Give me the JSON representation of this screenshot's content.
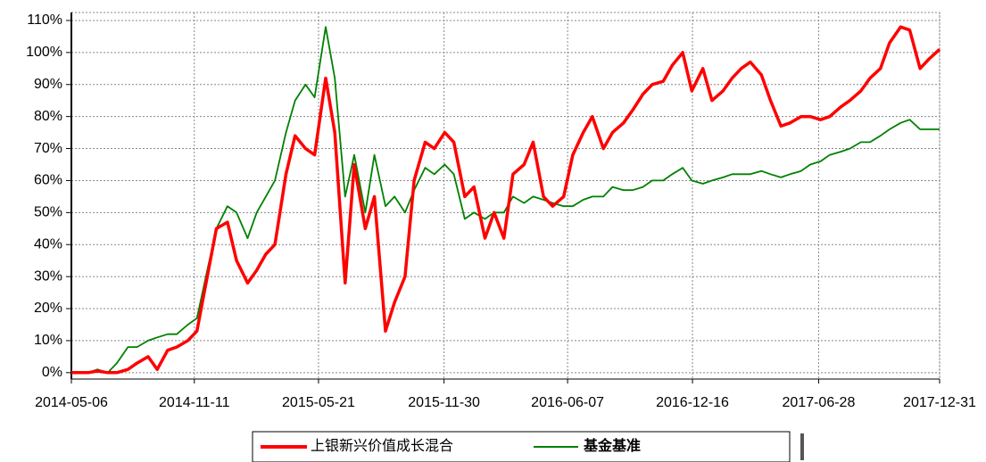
{
  "chart_data": {
    "type": "line",
    "x": [
      "2014-05-06",
      "2014-05-15",
      "2014-06-01",
      "2014-06-15",
      "2014-07-01",
      "2014-07-15",
      "2014-08-01",
      "2014-08-15",
      "2014-09-01",
      "2014-09-15",
      "2014-10-01",
      "2014-10-15",
      "2014-11-01",
      "2014-11-15",
      "2014-12-01",
      "2014-12-15",
      "2015-01-01",
      "2015-01-15",
      "2015-02-01",
      "2015-02-15",
      "2015-03-01",
      "2015-03-15",
      "2015-04-01",
      "2015-04-15",
      "2015-05-01",
      "2015-05-15",
      "2015-06-01",
      "2015-06-15",
      "2015-07-01",
      "2015-07-15",
      "2015-08-01",
      "2015-08-15",
      "2015-09-01",
      "2015-09-15",
      "2015-10-01",
      "2015-10-15",
      "2015-11-01",
      "2015-11-15",
      "2015-12-01",
      "2015-12-15",
      "2016-01-01",
      "2016-01-15",
      "2016-02-01",
      "2016-02-15",
      "2016-03-01",
      "2016-03-15",
      "2016-04-01",
      "2016-04-15",
      "2016-05-01",
      "2016-05-15",
      "2016-06-01",
      "2016-06-15",
      "2016-07-01",
      "2016-07-15",
      "2016-08-01",
      "2016-08-15",
      "2016-09-01",
      "2016-09-15",
      "2016-10-01",
      "2016-10-15",
      "2016-11-01",
      "2016-11-15",
      "2016-12-01",
      "2016-12-15",
      "2017-01-01",
      "2017-01-15",
      "2017-02-01",
      "2017-02-15",
      "2017-03-01",
      "2017-03-15",
      "2017-04-01",
      "2017-04-15",
      "2017-05-01",
      "2017-05-15",
      "2017-06-01",
      "2017-06-15",
      "2017-07-01",
      "2017-07-15",
      "2017-08-01",
      "2017-08-15",
      "2017-09-01",
      "2017-09-15",
      "2017-10-01",
      "2017-10-15",
      "2017-11-01",
      "2017-11-15",
      "2017-12-01",
      "2017-12-15",
      "2017-12-31"
    ],
    "series": [
      {
        "name": "上银新兴价值成长混合",
        "color": "#ff0000",
        "values": [
          0,
          0,
          0,
          0.5,
          0,
          0,
          1,
          3,
          5,
          1,
          7,
          8,
          10,
          13,
          30,
          45,
          47,
          35,
          28,
          32,
          37,
          40,
          62,
          74,
          70,
          68,
          92,
          75,
          28,
          65,
          45,
          55,
          13,
          22,
          30,
          60,
          72,
          70,
          75,
          72,
          55,
          58,
          42,
          50,
          42,
          62,
          65,
          72,
          55,
          52,
          55,
          68,
          75,
          80,
          70,
          75,
          78,
          82,
          87,
          90,
          91,
          96,
          100,
          88,
          95,
          85,
          88,
          92,
          95,
          97,
          93,
          85,
          77,
          78,
          80,
          80,
          79,
          80,
          83,
          85,
          88,
          92,
          95,
          103,
          108,
          107,
          95,
          98,
          101
        ]
      },
      {
        "name": "基金基准",
        "color": "#008000",
        "values": [
          0,
          0,
          0,
          1,
          0,
          3,
          8,
          8,
          10,
          11,
          12,
          12,
          15,
          17,
          32,
          45,
          52,
          50,
          42,
          50,
          55,
          60,
          75,
          85,
          90,
          86,
          108,
          92,
          55,
          68,
          50,
          68,
          52,
          55,
          50,
          57,
          64,
          62,
          65,
          62,
          48,
          50,
          48,
          50,
          50,
          55,
          53,
          55,
          54,
          53,
          52,
          52,
          54,
          55,
          55,
          58,
          57,
          57,
          58,
          60,
          60,
          62,
          64,
          60,
          59,
          60,
          61,
          62,
          62,
          62,
          63,
          62,
          61,
          62,
          63,
          65,
          66,
          68,
          69,
          70,
          72,
          72,
          74,
          76,
          78,
          79,
          76,
          76,
          76
        ]
      }
    ],
    "xlim": [
      "2014-05-06",
      "2017-12-31"
    ],
    "xticks": [
      "2014-05-06",
      "2014-11-11",
      "2015-05-21",
      "2015-11-30",
      "2016-06-07",
      "2016-12-16",
      "2017-06-28",
      "2017-12-31"
    ],
    "ylim": [
      -2,
      112.5
    ],
    "yticks": [
      {
        "value": 0,
        "label": "0%"
      },
      {
        "value": 10,
        "label": "10%"
      },
      {
        "value": 20,
        "label": "20%"
      },
      {
        "value": 30,
        "label": "30%"
      },
      {
        "value": 40,
        "label": "40%"
      },
      {
        "value": 50,
        "label": "50%"
      },
      {
        "value": 60,
        "label": "60%"
      },
      {
        "value": 70,
        "label": "70%"
      },
      {
        "value": 80,
        "label": "80%"
      },
      {
        "value": 90,
        "label": "90%"
      },
      {
        "value": 100,
        "label": "100%"
      },
      {
        "value": 110,
        "label": "110%"
      }
    ],
    "grid": true
  }
}
